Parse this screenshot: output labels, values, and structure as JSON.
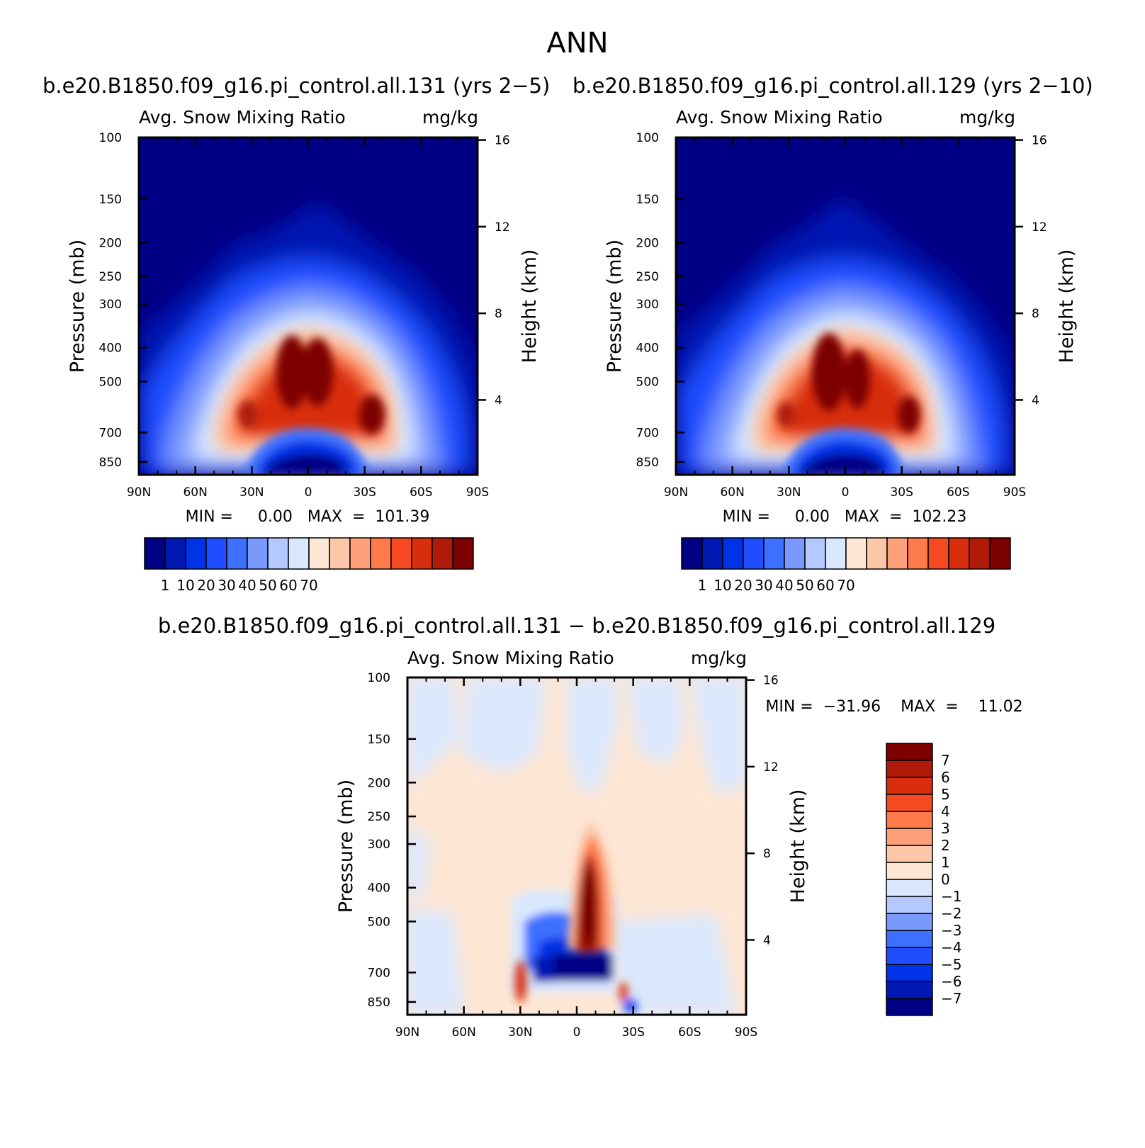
{
  "page": {
    "main_title": "ANN"
  },
  "panels": [
    {
      "id": "case1",
      "header": "b.e20.B1850.f09_g16.pi_control.all.131 (yrs 2−5)",
      "variable": "Avg. Snow Mixing Ratio",
      "units": "mg/kg",
      "ylabel": "Pressure (mb)",
      "ylabel_right": "Height (km)",
      "minmax": "MIN =     0.00   MAX  =  101.39"
    },
    {
      "id": "case2",
      "header": "b.e20.B1850.f09_g16.pi_control.all.129 (yrs 2−10)",
      "variable": "Avg. Snow Mixing Ratio",
      "units": "mg/kg",
      "ylabel": "Pressure (mb)",
      "ylabel_right": "Height (km)",
      "minmax": "MIN =     0.00   MAX  =  102.23"
    },
    {
      "id": "diff",
      "header": "b.e20.B1850.f09_g16.pi_control.all.131 − b.e20.B1850.f09_g16.pi_control.all.129",
      "variable": "Avg. Snow Mixing Ratio",
      "units": "mg/kg",
      "ylabel": "Pressure (mb)",
      "ylabel_right": "Height (km)",
      "minmax": "MIN =  −31.96    MAX  =    11.02"
    }
  ],
  "chart_data": [
    {
      "type": "heatmap",
      "title": "b.e20.B1850.f09_g16.pi_control.all.131 (yrs 2−5)",
      "subtitle": "Avg. Snow Mixing Ratio",
      "units": "mg/kg",
      "xlabel": "",
      "ylabel": "Pressure (mb)",
      "ylabel_right": "Height (km)",
      "x_ticks": [
        "90N",
        "60N",
        "30N",
        "0",
        "30S",
        "60S",
        "90S"
      ],
      "x_range": [
        90,
        -90
      ],
      "y_ticks": [
        100,
        150,
        200,
        250,
        300,
        400,
        500,
        700,
        850
      ],
      "y_range_mb": [
        100,
        925
      ],
      "y_scale": "log",
      "y_right_ticks": [
        4,
        8,
        12,
        16
      ],
      "min": 0.0,
      "max": 101.39,
      "colorbar_labels": [
        "1",
        "10",
        "20",
        "30",
        "40",
        "50",
        "60",
        "70"
      ],
      "features": [
        {
          "lat": 6,
          "p": 500,
          "value": 80
        },
        {
          "lat": -33,
          "p": 620,
          "value": 70
        },
        {
          "lat": 28,
          "p": 620,
          "value": 65
        }
      ]
    },
    {
      "type": "heatmap",
      "title": "b.e20.B1850.f09_g16.pi_control.all.129 (yrs 2−10)",
      "subtitle": "Avg. Snow Mixing Ratio",
      "units": "mg/kg",
      "xlabel": "",
      "ylabel": "Pressure (mb)",
      "ylabel_right": "Height (km)",
      "x_ticks": [
        "90N",
        "60N",
        "30N",
        "0",
        "30S",
        "60S",
        "90S"
      ],
      "x_range": [
        90,
        -90
      ],
      "y_ticks": [
        100,
        150,
        200,
        250,
        300,
        400,
        500,
        700,
        850
      ],
      "y_range_mb": [
        100,
        925
      ],
      "y_scale": "log",
      "y_right_ticks": [
        4,
        8,
        12,
        16
      ],
      "min": 0.0,
      "max": 102.23,
      "colorbar_labels": [
        "1",
        "10",
        "20",
        "30",
        "40",
        "50",
        "60",
        "70"
      ],
      "features": [
        {
          "lat": 8,
          "p": 500,
          "value": 85
        },
        {
          "lat": -33,
          "p": 620,
          "value": 72
        },
        {
          "lat": 28,
          "p": 620,
          "value": 66
        }
      ]
    },
    {
      "type": "heatmap",
      "title": "b.e20.B1850.f09_g16.pi_control.all.131 − b.e20.B1850.f09_g16.pi_control.all.129",
      "subtitle": "Avg. Snow Mixing Ratio",
      "units": "mg/kg",
      "xlabel": "",
      "ylabel": "Pressure (mb)",
      "ylabel_right": "Height (km)",
      "x_ticks": [
        "90N",
        "60N",
        "30N",
        "0",
        "30S",
        "60S",
        "90S"
      ],
      "x_range": [
        90,
        -90
      ],
      "y_ticks": [
        100,
        150,
        200,
        250,
        300,
        400,
        500,
        700,
        850
      ],
      "y_range_mb": [
        100,
        925
      ],
      "y_scale": "log",
      "y_right_ticks": [
        4,
        8,
        12,
        16
      ],
      "min": -31.96,
      "max": 11.02,
      "colorbar_labels": [
        "7",
        "6",
        "5",
        "4",
        "3",
        "2",
        "1",
        "0",
        "−1",
        "−2",
        "−3",
        "−4",
        "−5",
        "−6",
        "−7"
      ],
      "features": [
        {
          "lat": -3,
          "p": 400,
          "value": 8
        },
        {
          "lat": 5,
          "p": 690,
          "value": -8
        },
        {
          "lat": -12,
          "p": 690,
          "value": -7
        }
      ]
    }
  ],
  "colors": {
    "abs_scale": [
      "#000085",
      "#0019b3",
      "#0033e6",
      "#1f4dff",
      "#3d70ff",
      "#7999ff",
      "#b3c9ff",
      "#d9e8ff",
      "#fde6d4",
      "#fcc6a8",
      "#fda07a",
      "#ff7a4a",
      "#f54a21",
      "#d92e0e",
      "#b01a08",
      "#7d0000"
    ],
    "diff_scale": [
      "#7d0000",
      "#b01a08",
      "#d92e0e",
      "#f54a21",
      "#ff7a4a",
      "#fda07a",
      "#fcc6a8",
      "#fde6d4",
      "#d9e8ff",
      "#b3c9ff",
      "#7999ff",
      "#3d70ff",
      "#1f4dff",
      "#0033e6",
      "#0019b3",
      "#000085"
    ]
  }
}
